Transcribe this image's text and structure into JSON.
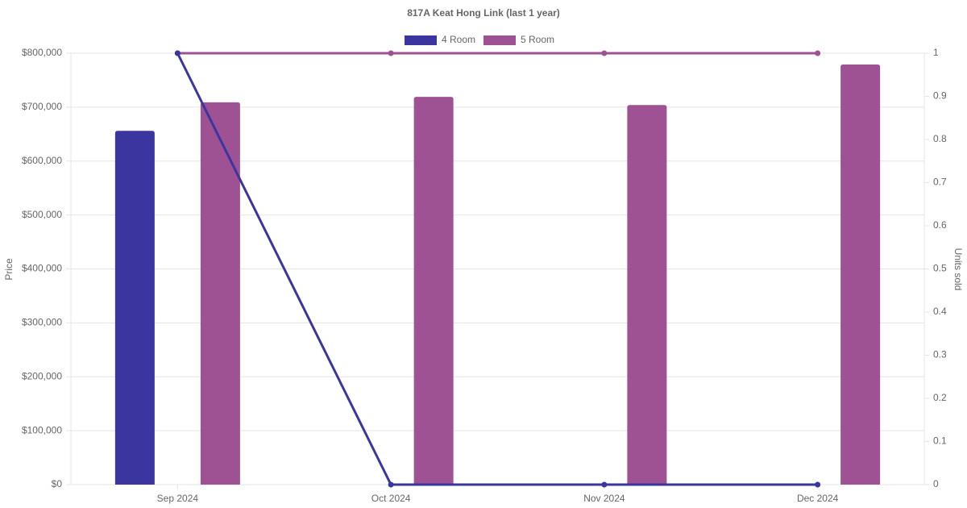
{
  "chart_data": {
    "type": "bar-line",
    "title": "817A Keat Hong Link (last 1 year)",
    "y_label": "Price",
    "y2_label": "Units sold",
    "categories": [
      "Sep 2024",
      "Oct 2024",
      "Nov 2024",
      "Dec 2024"
    ],
    "series": [
      {
        "name": "4 Room",
        "color": "#3b35a0",
        "values": [
          656000,
          null,
          null,
          null
        ],
        "units": [
          1,
          0,
          0,
          0
        ]
      },
      {
        "name": "5 Room",
        "color": "#9e5193",
        "values": [
          709000,
          719000,
          704000,
          779000
        ],
        "units": [
          1,
          1,
          1,
          1
        ]
      }
    ],
    "ylim": [
      0,
      800000
    ],
    "yticks": [
      {
        "value": 0,
        "label": "$0"
      },
      {
        "value": 100000,
        "label": "$100,000"
      },
      {
        "value": 200000,
        "label": "$200,000"
      },
      {
        "value": 300000,
        "label": "$300,000"
      },
      {
        "value": 400000,
        "label": "$400,000"
      },
      {
        "value": 500000,
        "label": "$500,000"
      },
      {
        "value": 600000,
        "label": "$600,000"
      },
      {
        "value": 700000,
        "label": "$700,000"
      },
      {
        "value": 800000,
        "label": "$800,000"
      }
    ],
    "y2lim": [
      0,
      1
    ],
    "y2ticks": [
      0,
      0.1,
      0.2,
      0.3,
      0.4,
      0.5,
      0.6,
      0.7,
      0.8,
      0.9,
      1
    ],
    "grid": true,
    "legend": "top"
  }
}
